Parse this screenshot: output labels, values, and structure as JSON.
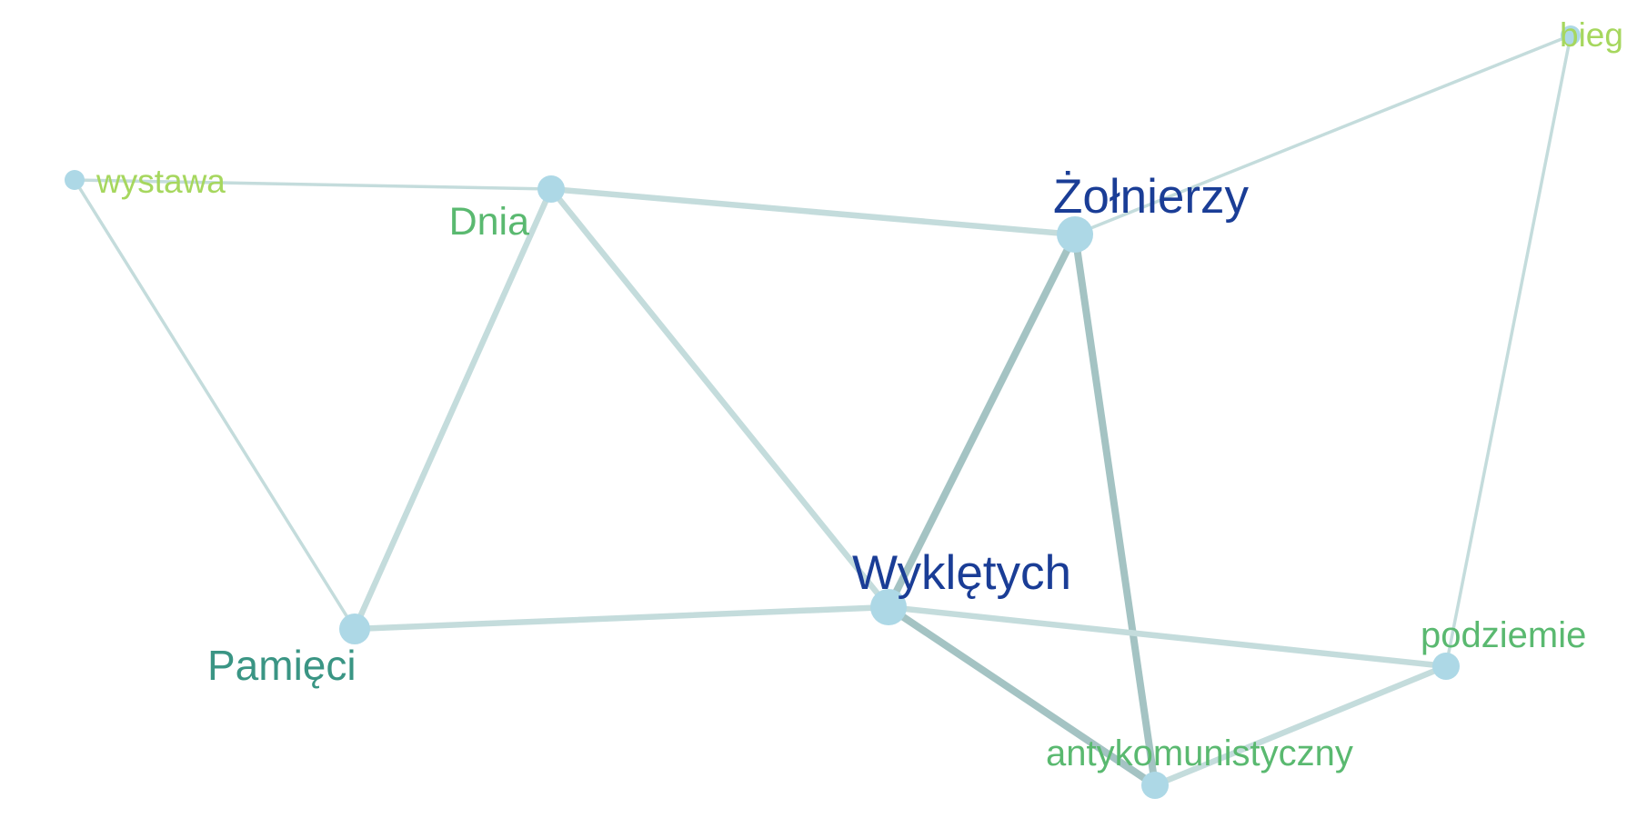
{
  "graph": {
    "type": "network",
    "node_color": "#add8e6",
    "nodes": [
      {
        "id": "wystawa",
        "label": "wystawa",
        "label_color": "#a6d75e"
      },
      {
        "id": "dnia",
        "label": "Dnia",
        "label_color": "#5ab970"
      },
      {
        "id": "zolnierzy",
        "label": "Żołnierzy",
        "label_color": "#1a3d96"
      },
      {
        "id": "bieg",
        "label": "bieg",
        "label_color": "#a6d75e"
      },
      {
        "id": "wykletych",
        "label": "Wyklętych",
        "label_color": "#1a3d96"
      },
      {
        "id": "pamieci",
        "label": "Pamięci",
        "label_color": "#3a9584"
      },
      {
        "id": "podziemie",
        "label": "podziemie",
        "label_color": "#5ab970"
      },
      {
        "id": "antykomunistyczny",
        "label": "antykomunistyczny",
        "label_color": "#5ab970"
      }
    ],
    "edges": [
      {
        "source": "wystawa",
        "target": "dnia",
        "strength": "weak",
        "color": "#c4dcdc"
      },
      {
        "source": "wystawa",
        "target": "pamieci",
        "strength": "weak",
        "color": "#c4dcdc"
      },
      {
        "source": "dnia",
        "target": "zolnierzy",
        "strength": "medium",
        "color": "#c4dcdc"
      },
      {
        "source": "dnia",
        "target": "pamieci",
        "strength": "medium",
        "color": "#c4dcdc"
      },
      {
        "source": "dnia",
        "target": "wykletych",
        "strength": "medium",
        "color": "#c4dcdc"
      },
      {
        "source": "zolnierzy",
        "target": "bieg",
        "strength": "weak",
        "color": "#c4dcdc"
      },
      {
        "source": "zolnierzy",
        "target": "wykletych",
        "strength": "strong",
        "color": "#a4c3c3"
      },
      {
        "source": "zolnierzy",
        "target": "antykomunistyczny",
        "strength": "strong",
        "color": "#a4c3c3"
      },
      {
        "source": "bieg",
        "target": "podziemie",
        "strength": "weak",
        "color": "#c4dcdc"
      },
      {
        "source": "pamieci",
        "target": "wykletych",
        "strength": "medium",
        "color": "#c4dcdc"
      },
      {
        "source": "wykletych",
        "target": "podziemie",
        "strength": "medium",
        "color": "#c4dcdc"
      },
      {
        "source": "wykletych",
        "target": "antykomunistyczny",
        "strength": "strong",
        "color": "#a4c3c3"
      },
      {
        "source": "podziemie",
        "target": "antykomunistyczny",
        "strength": "medium",
        "color": "#c4dcdc"
      }
    ]
  }
}
